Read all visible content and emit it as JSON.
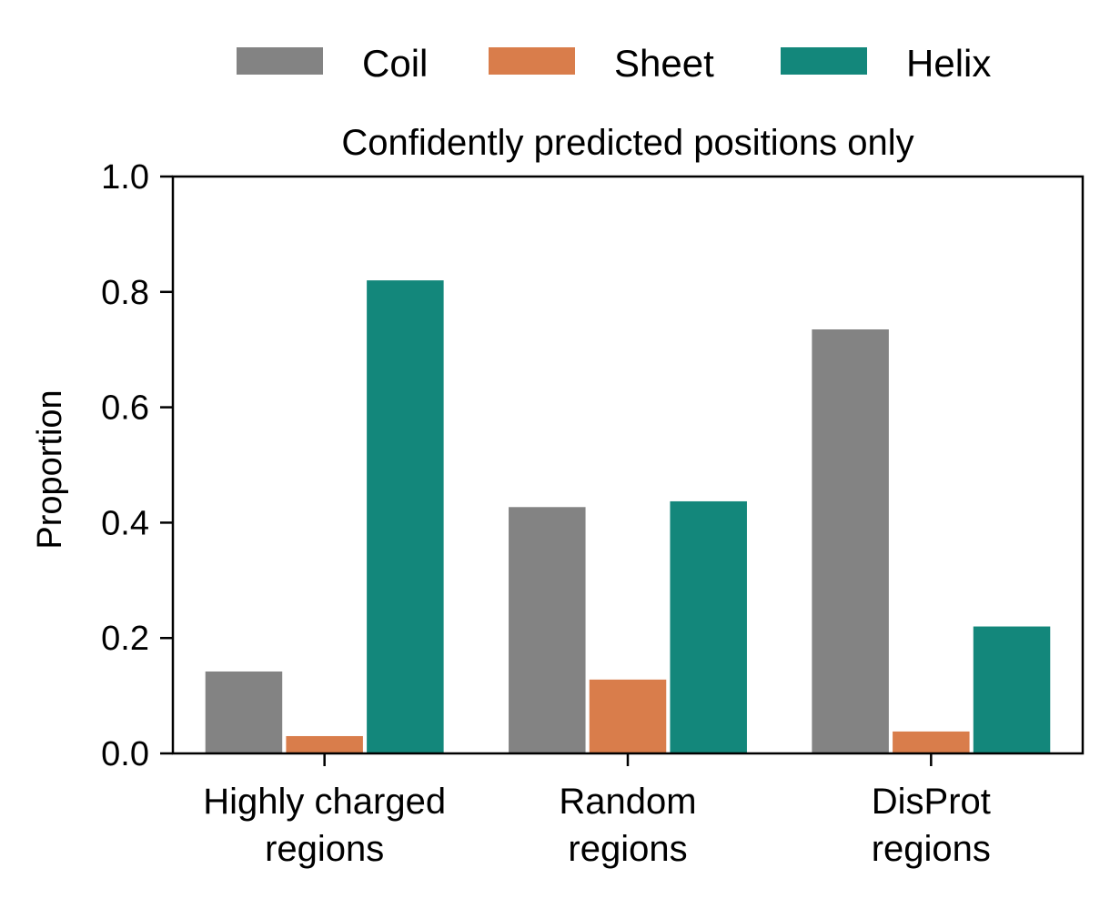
{
  "chart_data": {
    "type": "bar",
    "title": "Confidently predicted positions only",
    "xlabel": "",
    "ylabel": "Proportion",
    "ylim": [
      0,
      1.0
    ],
    "yticks": [
      "0.0",
      "0.2",
      "0.4",
      "0.6",
      "0.8",
      "1.0"
    ],
    "categories": [
      [
        "Highly charged",
        "regions"
      ],
      [
        "Random",
        "regions"
      ],
      [
        "DisProt",
        "regions"
      ]
    ],
    "series": [
      {
        "name": "Coil",
        "color": "#838383",
        "values": [
          0.142,
          0.427,
          0.735
        ]
      },
      {
        "name": "Sheet",
        "color": "#d97d4b",
        "values": [
          0.03,
          0.128,
          0.038
        ]
      },
      {
        "name": "Helix",
        "color": "#13877b",
        "values": [
          0.82,
          0.437,
          0.22
        ]
      }
    ],
    "legend_position": "top-center",
    "grid": false
  }
}
